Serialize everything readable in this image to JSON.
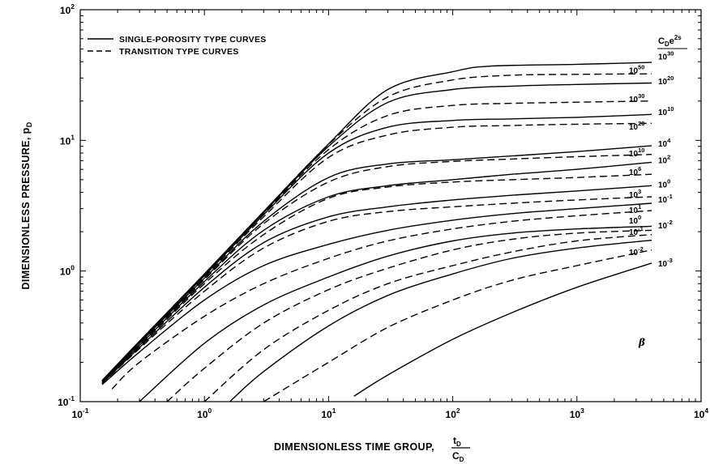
{
  "chart_data": {
    "type": "line",
    "xscale": "log",
    "yscale": "log",
    "xlim": [
      0.1,
      10000
    ],
    "ylim": [
      0.1,
      100
    ],
    "grid": false,
    "legend_position": "top-left",
    "xlabel_main": "DIMENSIONLESS TIME GROUP,",
    "xlabel_frac_num": "t",
    "xlabel_frac_num_sub": "D",
    "xlabel_frac_den": "C",
    "xlabel_frac_den_sub": "D",
    "ylabel": "DIMENSIONLESS PRESSURE,",
    "ylabel_sym": "p",
    "ylabel_sym_sub": "D",
    "x_ticks": [
      {
        "base": "10",
        "exp": "-1",
        "value": 0.1
      },
      {
        "base": "10",
        "exp": "0",
        "value": 1
      },
      {
        "base": "10",
        "exp": "1",
        "value": 10
      },
      {
        "base": "10",
        "exp": "2",
        "value": 100
      },
      {
        "base": "10",
        "exp": "3",
        "value": 1000
      },
      {
        "base": "10",
        "exp": "4",
        "value": 10000
      }
    ],
    "y_ticks": [
      {
        "base": "10",
        "exp": "-1",
        "value": 0.1
      },
      {
        "base": "10",
        "exp": "0",
        "value": 1
      },
      {
        "base": "10",
        "exp": "1",
        "value": 10
      },
      {
        "base": "10",
        "exp": "2",
        "value": 100
      }
    ],
    "legend": [
      {
        "label": "SINGLE-POROSITY TYPE CURVES",
        "style": "solid"
      },
      {
        "label": "TRANSITION TYPE CURVES",
        "style": "dashed"
      }
    ],
    "right_header": {
      "main": "C",
      "sub": "D",
      "mid": "e",
      "sup": "2s"
    },
    "beta_label": "β",
    "series": [
      {
        "style": "solid",
        "label_base": "10",
        "label_exp": "30",
        "side": "right",
        "label_y": 44,
        "x": [
          0.15,
          0.3,
          1,
          3,
          10,
          30,
          100,
          200,
          1000,
          4000
        ],
        "y": [
          0.145,
          0.29,
          0.95,
          2.85,
          9.4,
          24.5,
          33.5,
          37,
          38.2,
          39.5
        ]
      },
      {
        "style": "dashed",
        "label_base": "10",
        "label_exp": "50",
        "side": "left",
        "label_y": 34.5,
        "x": [
          0.15,
          0.3,
          1,
          3,
          10,
          30,
          100,
          300,
          1000,
          4000
        ],
        "y": [
          0.145,
          0.29,
          0.95,
          2.85,
          9.3,
          21.5,
          29,
          31.5,
          32,
          32.3
        ]
      },
      {
        "style": "solid",
        "label_base": "10",
        "label_exp": "20",
        "side": "right",
        "label_y": 28.5,
        "x": [
          0.15,
          0.3,
          1,
          3,
          10,
          30,
          100,
          300,
          1000,
          4000
        ],
        "y": [
          0.145,
          0.29,
          0.94,
          2.8,
          9,
          19.5,
          24.5,
          26,
          26.8,
          27.5
        ]
      },
      {
        "style": "dashed",
        "label_base": "10",
        "label_exp": "30",
        "side": "left",
        "label_y": 20.8,
        "x": [
          0.15,
          0.3,
          1,
          3,
          10,
          30,
          100,
          300,
          1000,
          4000
        ],
        "y": [
          0.143,
          0.285,
          0.93,
          2.75,
          8.5,
          15.5,
          18.5,
          19.2,
          19.6,
          20
        ]
      },
      {
        "style": "solid",
        "label_base": "10",
        "label_exp": "10",
        "side": "right",
        "label_y": 16.5,
        "x": [
          0.15,
          0.3,
          1,
          3,
          10,
          30,
          100,
          300,
          1000,
          4000
        ],
        "y": [
          0.143,
          0.285,
          0.92,
          2.7,
          8,
          12.6,
          14.2,
          14.6,
          15,
          15.8
        ]
      },
      {
        "style": "dashed",
        "label_base": "10",
        "label_exp": "20",
        "side": "left",
        "label_y": 12.8,
        "x": [
          0.15,
          0.3,
          1,
          3,
          10,
          30,
          100,
          300,
          1000,
          4000
        ],
        "y": [
          0.14,
          0.28,
          0.9,
          2.6,
          7.4,
          11,
          12.6,
          13,
          13.3,
          13.5
        ]
      },
      {
        "style": "solid",
        "label_base": "10",
        "label_exp": "4",
        "side": "right",
        "label_y": 9.5,
        "x": [
          0.15,
          0.3,
          1,
          3,
          10,
          30,
          100,
          300,
          1000,
          4000
        ],
        "y": [
          0.14,
          0.28,
          0.88,
          2.4,
          5.2,
          6.6,
          7.1,
          7.6,
          8.2,
          9.1
        ]
      },
      {
        "style": "dashed",
        "label_base": "10",
        "label_exp": "10",
        "side": "left",
        "label_y": 8.0,
        "x": [
          0.15,
          0.3,
          1,
          3,
          10,
          30,
          100,
          300,
          1000,
          4000
        ],
        "y": [
          0.14,
          0.275,
          0.86,
          2.3,
          4.8,
          6.3,
          6.9,
          7.2,
          7.5,
          7.8
        ]
      },
      {
        "style": "solid",
        "label_base": "10",
        "label_exp": "2",
        "side": "right",
        "label_y": 7.1,
        "x": [
          0.15,
          0.3,
          1,
          3,
          10,
          30,
          100,
          300,
          1000,
          4000
        ],
        "y": [
          0.14,
          0.27,
          0.83,
          2.05,
          3.7,
          4.5,
          5,
          5.5,
          6,
          6.8
        ]
      },
      {
        "style": "dashed",
        "label_base": "10",
        "label_exp": "6",
        "side": "left",
        "label_y": 5.75,
        "x": [
          0.15,
          0.3,
          1,
          3,
          10,
          30,
          100,
          300,
          1000,
          4000
        ],
        "y": [
          0.138,
          0.265,
          0.8,
          1.9,
          3.6,
          4.4,
          4.8,
          5,
          5.2,
          5.5
        ]
      },
      {
        "style": "solid",
        "label_base": "10",
        "label_exp": "0",
        "side": "right",
        "label_y": 4.6,
        "x": [
          0.15,
          0.3,
          1,
          3,
          10,
          30,
          100,
          300,
          1000,
          4000
        ],
        "y": [
          0.138,
          0.26,
          0.75,
          1.65,
          2.6,
          3.1,
          3.5,
          3.8,
          4.1,
          4.5
        ]
      },
      {
        "style": "dashed",
        "label_base": "10",
        "label_exp": "3",
        "side": "left",
        "label_y": 3.85,
        "x": [
          0.15,
          0.3,
          1,
          3,
          10,
          30,
          100,
          300,
          1000,
          4000
        ],
        "y": [
          0.137,
          0.255,
          0.7,
          1.5,
          2.4,
          2.85,
          3.1,
          3.3,
          3.5,
          3.7
        ]
      },
      {
        "style": "solid",
        "label_base": "10",
        "label_exp": "-1",
        "side": "right",
        "label_y": 3.55,
        "x": [
          0.15,
          0.3,
          1,
          3,
          10,
          30,
          100,
          300,
          1000,
          4000
        ],
        "y": [
          0.135,
          0.24,
          0.6,
          1.1,
          1.6,
          2.05,
          2.45,
          2.75,
          3,
          3.3
        ]
      },
      {
        "style": "dashed",
        "label_base": "10",
        "label_exp": "1",
        "side": "left",
        "label_y": 2.95,
        "x": [
          0.18,
          0.3,
          1,
          3,
          10,
          30,
          100,
          300,
          1000,
          4000
        ],
        "y": [
          0.125,
          0.2,
          0.45,
          0.8,
          1.25,
          1.7,
          2.1,
          2.4,
          2.65,
          2.9
        ]
      },
      {
        "style": "solid",
        "label_base": "10",
        "label_exp": "-2",
        "side": "right",
        "label_y": 2.25,
        "x": [
          0.3,
          1,
          3,
          10,
          30,
          100,
          300,
          1000,
          4000
        ],
        "y": [
          0.1,
          0.28,
          0.55,
          0.9,
          1.3,
          1.7,
          1.95,
          2.1,
          2.2
        ]
      },
      {
        "style": "dashed",
        "label_base": "10",
        "label_exp": "0",
        "side": "left",
        "label_y": 2.45,
        "x": [
          0.5,
          1,
          3,
          10,
          30,
          100,
          300,
          1000,
          4000
        ],
        "y": [
          0.1,
          0.18,
          0.4,
          0.72,
          1.05,
          1.45,
          1.75,
          1.95,
          2.05
        ]
      },
      {
        "style": "dashed",
        "label_base": "10",
        "label_exp": "-1",
        "side": "left",
        "label_y": 2.0,
        "x": [
          1,
          3,
          10,
          30,
          100,
          300,
          1000,
          4000
        ],
        "y": [
          0.1,
          0.25,
          0.5,
          0.8,
          1.1,
          1.4,
          1.7,
          1.9
        ]
      },
      {
        "style": "solid",
        "label_base": "",
        "label_exp": "",
        "side": "none",
        "label_y": 0,
        "x": [
          1.6,
          3,
          10,
          30,
          100,
          300,
          1000,
          4000
        ],
        "y": [
          0.1,
          0.17,
          0.38,
          0.65,
          0.95,
          1.25,
          1.5,
          1.72
        ]
      },
      {
        "style": "dashed",
        "label_base": "10",
        "label_exp": "-2",
        "side": "left",
        "label_y": 1.4,
        "x": [
          3,
          10,
          30,
          100,
          300,
          1000,
          4000
        ],
        "y": [
          0.1,
          0.2,
          0.37,
          0.6,
          0.85,
          1.1,
          1.45
        ]
      },
      {
        "style": "solid",
        "label_base": "10",
        "label_exp": "-3",
        "side": "right",
        "label_y": 1.15,
        "x": [
          16,
          30,
          100,
          300,
          1000,
          4000
        ],
        "y": [
          0.11,
          0.16,
          0.3,
          0.48,
          0.75,
          1.15
        ]
      }
    ]
  }
}
